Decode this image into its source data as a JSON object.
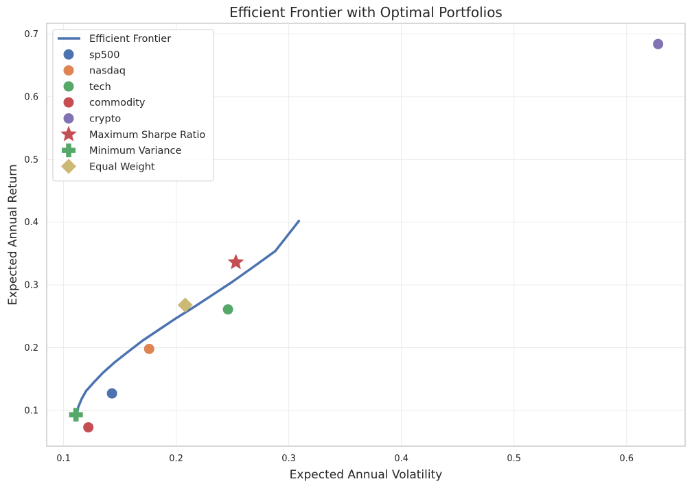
{
  "chart_data": {
    "type": "scatter",
    "title": "Efficient Frontier with Optimal Portfolios",
    "xlabel": "Expected Annual Volatility",
    "ylabel": "Expected Annual Return",
    "xlim": [
      0.085,
      0.652
    ],
    "ylim": [
      0.043,
      0.717
    ],
    "xticks": [
      0.1,
      0.2,
      0.3,
      0.4,
      0.5,
      0.6
    ],
    "yticks": [
      0.1,
      0.2,
      0.3,
      0.4,
      0.5,
      0.6,
      0.7
    ],
    "grid": true,
    "legend_position": "upper-left",
    "frontier": {
      "name": "Efficient Frontier",
      "color": "#4c72b0",
      "x": [
        0.112,
        0.113,
        0.116,
        0.12,
        0.127,
        0.135,
        0.145,
        0.157,
        0.17,
        0.185,
        0.2,
        0.216,
        0.233,
        0.25,
        0.268,
        0.288,
        0.309
      ],
      "y": [
        0.093,
        0.105,
        0.118,
        0.131,
        0.145,
        0.16,
        0.176,
        0.193,
        0.211,
        0.229,
        0.247,
        0.265,
        0.285,
        0.305,
        0.328,
        0.354,
        0.402
      ]
    },
    "assets": [
      {
        "name": "sp500",
        "x": 0.143,
        "y": 0.127,
        "color": "#4c72b0"
      },
      {
        "name": "nasdaq",
        "x": 0.176,
        "y": 0.198,
        "color": "#dd8452"
      },
      {
        "name": "tech",
        "x": 0.246,
        "y": 0.261,
        "color": "#55a868"
      },
      {
        "name": "commodity",
        "x": 0.122,
        "y": 0.073,
        "color": "#c44e52"
      },
      {
        "name": "crypto",
        "x": 0.628,
        "y": 0.684,
        "color": "#8172b3"
      }
    ],
    "portfolios": [
      {
        "name": "Maximum Sharpe Ratio",
        "x": 0.253,
        "y": 0.336,
        "color": "#c44e52",
        "marker": "star"
      },
      {
        "name": "Minimum Variance",
        "x": 0.111,
        "y": 0.093,
        "color": "#55a868",
        "marker": "plus"
      },
      {
        "name": "Equal Weight",
        "x": 0.208,
        "y": 0.268,
        "color": "#ccb974",
        "marker": "diamond"
      }
    ]
  }
}
